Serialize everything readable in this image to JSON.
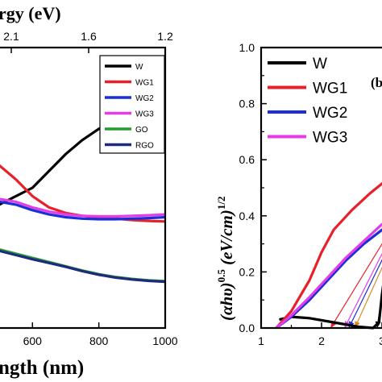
{
  "chart_data": [
    {
      "type": "line",
      "title": "",
      "top_axis_label": "rgy (eV)",
      "top_ticks": [
        "2.1",
        "1.6",
        "1.2"
      ],
      "xlabel": "ngth (nm)",
      "x_ticks": [
        "600",
        "800",
        "1000"
      ],
      "xlim": [
        500,
        1000
      ],
      "legend_position": "top-right",
      "series": [
        {
          "name": "W",
          "color": "#000000",
          "x": [
            500,
            600,
            650,
            700,
            750,
            800,
            850,
            900,
            960
          ],
          "y": [
            0.44,
            0.5,
            0.56,
            0.62,
            0.67,
            0.71,
            0.74,
            0.75,
            0.76
          ]
        },
        {
          "name": "WG1",
          "color": "#e8202a",
          "x": [
            500,
            550,
            600,
            650,
            700,
            750,
            800,
            850,
            900,
            950,
            1000
          ],
          "y": [
            0.58,
            0.53,
            0.47,
            0.43,
            0.41,
            0.4,
            0.395,
            0.39,
            0.385,
            0.382,
            0.38
          ]
        },
        {
          "name": "WG2",
          "color": "#1a2fd6",
          "x": [
            500,
            550,
            600,
            650,
            700,
            750,
            800,
            850,
            900,
            950,
            1000
          ],
          "y": [
            0.45,
            0.44,
            0.42,
            0.405,
            0.395,
            0.39,
            0.388,
            0.388,
            0.39,
            0.392,
            0.395
          ]
        },
        {
          "name": "WG3",
          "color": "#e33ce8",
          "x": [
            500,
            550,
            600,
            650,
            700,
            750,
            800,
            850,
            900,
            950,
            1000
          ],
          "y": [
            0.46,
            0.45,
            0.43,
            0.415,
            0.405,
            0.4,
            0.398,
            0.398,
            0.4,
            0.402,
            0.405
          ]
        },
        {
          "name": "GO",
          "color": "#2a9a30",
          "x": [
            500,
            550,
            600,
            650,
            700,
            750,
            800,
            850,
            900,
            950,
            1000
          ],
          "y": [
            0.28,
            0.265,
            0.25,
            0.235,
            0.22,
            0.205,
            0.192,
            0.182,
            0.175,
            0.17,
            0.167
          ]
        },
        {
          "name": "RGO",
          "color": "#1e2a80",
          "x": [
            500,
            550,
            600,
            650,
            700,
            750,
            800,
            850,
            900,
            950,
            1000
          ],
          "y": [
            0.275,
            0.26,
            0.245,
            0.232,
            0.218,
            0.203,
            0.19,
            0.18,
            0.173,
            0.168,
            0.165
          ]
        }
      ]
    },
    {
      "type": "line",
      "title": "",
      "ylabel": "(αhυ)^0.5 (eV/cm)^1/2",
      "ylabel_main": "(αhυ)",
      "ylabel_sup1": "0.5",
      "ylabel_mid": " (eV/cm)",
      "ylabel_sup2": "1/2",
      "y_ticks": [
        "0.0",
        "0.2",
        "0.4",
        "0.6",
        "0.8",
        "1.0"
      ],
      "x_ticks": [
        "1",
        "2",
        "3"
      ],
      "ylim": [
        0.0,
        1.0
      ],
      "xlim": [
        1.0,
        3.2
      ],
      "panel_label": "(b",
      "legend_position": "top-left",
      "series": [
        {
          "name": "W",
          "color": "#000000",
          "x": [
            1.3,
            1.5,
            1.8,
            2.2,
            2.6,
            2.85,
            2.95,
            3.0,
            3.05,
            3.1,
            3.2
          ],
          "y": [
            0.03,
            0.04,
            0.035,
            0.02,
            0.005,
            0.0,
            0.02,
            0.12,
            0.2,
            0.24,
            0.26
          ]
        },
        {
          "name": "WG1",
          "color": "#e8202a",
          "x": [
            1.25,
            1.5,
            1.8,
            2.0,
            2.2,
            2.5,
            2.8,
            3.2
          ],
          "y": [
            0.0,
            0.06,
            0.17,
            0.27,
            0.35,
            0.42,
            0.48,
            0.55
          ]
        },
        {
          "name": "WG2",
          "color": "#1a2fd6",
          "x": [
            1.25,
            1.5,
            1.8,
            2.1,
            2.4,
            2.7,
            3.0,
            3.2
          ],
          "y": [
            0.0,
            0.04,
            0.1,
            0.17,
            0.24,
            0.3,
            0.35,
            0.38
          ]
        },
        {
          "name": "WG3",
          "color": "#e33ce8",
          "x": [
            1.25,
            1.5,
            1.8,
            2.1,
            2.4,
            2.7,
            3.0,
            3.2
          ],
          "y": [
            0.0,
            0.045,
            0.11,
            0.18,
            0.25,
            0.31,
            0.37,
            0.4
          ]
        }
      ],
      "tangents": [
        {
          "color": "#e8202a",
          "x1": 3.2,
          "y1": 0.37,
          "x2": 2.15,
          "y2": 0.0
        },
        {
          "color": "#1a2fd6",
          "x1": 3.2,
          "y1": 0.33,
          "x2": 2.45,
          "y2": 0.0
        },
        {
          "color": "#e33ce8",
          "x1": 3.2,
          "y1": 0.35,
          "x2": 2.38,
          "y2": 0.0
        },
        {
          "color": "#d88a2a",
          "x1": 3.2,
          "y1": 0.31,
          "x2": 2.55,
          "y2": 0.0
        },
        {
          "color": "#000000",
          "x1": 3.05,
          "y1": 0.2,
          "x2": 2.92,
          "y2": 0.0
        }
      ]
    }
  ]
}
